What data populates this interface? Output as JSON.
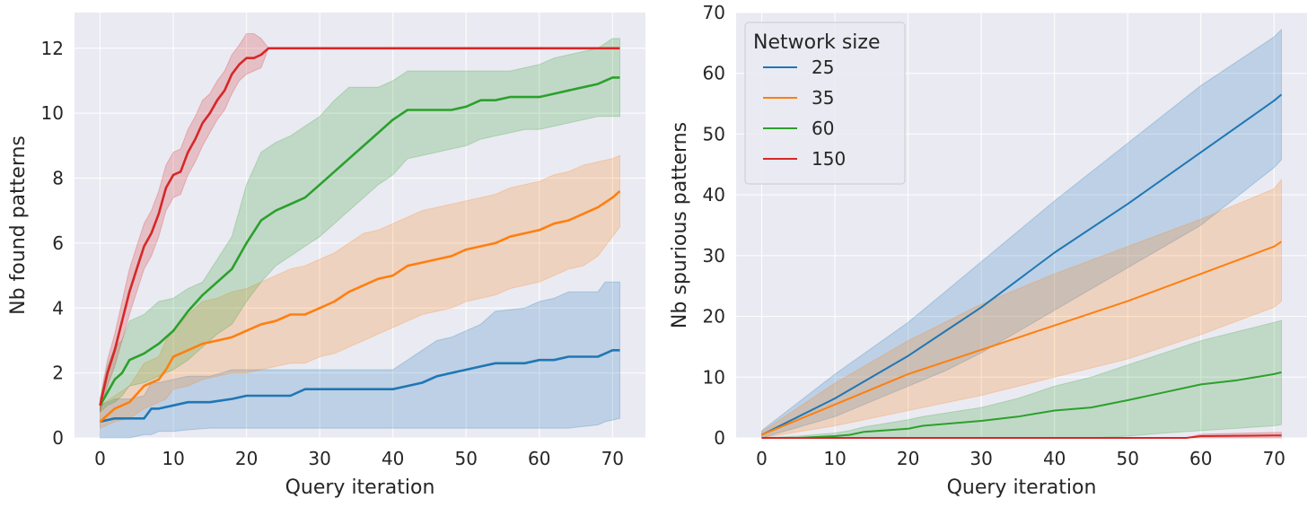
{
  "chart_data": [
    {
      "type": "line",
      "title": "",
      "xlabel": "Query iteration",
      "ylabel": "Nb found patterns",
      "xlim": [
        -3.5,
        74.5
      ],
      "ylim": [
        0,
        13.1
      ],
      "xticks": [
        0,
        10,
        20,
        30,
        40,
        50,
        60,
        70
      ],
      "yticks": [
        0,
        2,
        4,
        6,
        8,
        10,
        12
      ],
      "grid": true,
      "series": [
        {
          "name": "25",
          "color": "#1f77b4",
          "x": [
            0,
            2,
            4,
            6,
            7,
            8,
            10,
            12,
            15,
            18,
            20,
            22,
            26,
            28,
            32,
            36,
            40,
            42,
            44,
            46,
            48,
            50,
            52,
            54,
            58,
            60,
            62,
            64,
            68,
            69,
            70,
            71
          ],
          "y": [
            0.5,
            0.6,
            0.6,
            0.6,
            0.9,
            0.9,
            1.0,
            1.1,
            1.1,
            1.2,
            1.3,
            1.3,
            1.3,
            1.5,
            1.5,
            1.5,
            1.5,
            1.6,
            1.7,
            1.9,
            2.0,
            2.1,
            2.2,
            2.3,
            2.3,
            2.4,
            2.4,
            2.5,
            2.5,
            2.6,
            2.7,
            2.7
          ],
          "lower": [
            0,
            0,
            0,
            0.1,
            0.1,
            0.2,
            0.2,
            0.25,
            0.3,
            0.3,
            0.3,
            0.3,
            0.3,
            0.3,
            0.3,
            0.3,
            0.3,
            0.3,
            0.3,
            0.3,
            0.3,
            0.3,
            0.3,
            0.3,
            0.3,
            0.3,
            0.3,
            0.3,
            0.4,
            0.5,
            0.55,
            0.6
          ],
          "upper": [
            1.0,
            1.2,
            1.2,
            1.3,
            1.7,
            1.7,
            1.8,
            1.9,
            1.9,
            2.1,
            2.1,
            2.1,
            2.1,
            2.1,
            2.1,
            2.1,
            2.1,
            2.4,
            2.7,
            3.0,
            3.1,
            3.3,
            3.5,
            3.9,
            4.0,
            4.2,
            4.3,
            4.5,
            4.5,
            4.8,
            4.8,
            4.8
          ]
        },
        {
          "name": "35",
          "color": "#ff7f0e",
          "x": [
            0,
            2,
            4,
            6,
            8,
            9,
            10,
            12,
            14,
            16,
            18,
            20,
            22,
            24,
            26,
            28,
            30,
            32,
            34,
            36,
            38,
            40,
            42,
            44,
            46,
            48,
            50,
            52,
            54,
            56,
            58,
            60,
            62,
            64,
            66,
            68,
            70,
            71
          ],
          "y": [
            0.5,
            0.9,
            1.1,
            1.6,
            1.8,
            2.1,
            2.5,
            2.7,
            2.9,
            3.0,
            3.1,
            3.3,
            3.5,
            3.6,
            3.8,
            3.8,
            4.0,
            4.2,
            4.5,
            4.7,
            4.9,
            5.0,
            5.3,
            5.4,
            5.5,
            5.6,
            5.8,
            5.9,
            6.0,
            6.2,
            6.3,
            6.4,
            6.6,
            6.7,
            6.9,
            7.1,
            7.4,
            7.6
          ],
          "lower": [
            0.3,
            0.5,
            0.6,
            0.9,
            1.1,
            1.2,
            1.5,
            1.6,
            1.8,
            1.9,
            2.0,
            2.0,
            2.1,
            2.2,
            2.3,
            2.3,
            2.5,
            2.6,
            2.8,
            3.0,
            3.2,
            3.4,
            3.6,
            3.8,
            3.9,
            4.0,
            4.2,
            4.3,
            4.4,
            4.6,
            4.7,
            4.8,
            5.0,
            5.2,
            5.3,
            5.6,
            6.2,
            6.5
          ],
          "upper": [
            1.0,
            1.3,
            1.6,
            2.3,
            2.5,
            3.0,
            3.3,
            3.8,
            4.2,
            4.3,
            4.5,
            4.6,
            4.8,
            5.0,
            5.2,
            5.3,
            5.5,
            5.7,
            6.0,
            6.3,
            6.4,
            6.6,
            6.8,
            7.0,
            7.1,
            7.2,
            7.3,
            7.4,
            7.5,
            7.7,
            7.8,
            7.9,
            8.1,
            8.2,
            8.4,
            8.5,
            8.6,
            8.7
          ]
        },
        {
          "name": "60",
          "color": "#2ca02c",
          "x": [
            0,
            1,
            2,
            3,
            4,
            6,
            8,
            10,
            12,
            14,
            16,
            18,
            20,
            22,
            24,
            26,
            28,
            30,
            32,
            34,
            36,
            38,
            40,
            42,
            44,
            46,
            48,
            50,
            52,
            54,
            56,
            58,
            60,
            62,
            64,
            66,
            68,
            70,
            71
          ],
          "y": [
            1.0,
            1.4,
            1.8,
            2.0,
            2.4,
            2.6,
            2.9,
            3.3,
            3.9,
            4.4,
            4.8,
            5.2,
            6.0,
            6.7,
            7.0,
            7.2,
            7.4,
            7.8,
            8.2,
            8.6,
            9.0,
            9.4,
            9.8,
            10.1,
            10.1,
            10.1,
            10.1,
            10.2,
            10.4,
            10.4,
            10.5,
            10.5,
            10.5,
            10.6,
            10.7,
            10.8,
            10.9,
            11.1,
            11.1
          ],
          "lower": [
            0.8,
            1.0,
            1.1,
            1.3,
            1.6,
            1.7,
            1.9,
            2.1,
            2.4,
            2.8,
            3.2,
            3.5,
            4.2,
            4.8,
            5.3,
            5.6,
            5.9,
            6.2,
            6.6,
            7.0,
            7.4,
            7.8,
            8.1,
            8.6,
            8.7,
            8.8,
            8.9,
            9.0,
            9.2,
            9.3,
            9.4,
            9.5,
            9.5,
            9.6,
            9.7,
            9.8,
            9.9,
            9.9,
            9.9
          ],
          "upper": [
            1.2,
            2.2,
            2.8,
            3.0,
            3.6,
            3.8,
            4.2,
            4.3,
            4.6,
            4.8,
            5.5,
            6.2,
            7.8,
            8.8,
            9.1,
            9.3,
            9.6,
            9.9,
            10.4,
            10.8,
            10.8,
            10.8,
            11.0,
            11.3,
            11.3,
            11.3,
            11.3,
            11.3,
            11.3,
            11.3,
            11.3,
            11.4,
            11.5,
            11.7,
            11.8,
            11.9,
            12.0,
            12.3,
            12.3
          ]
        },
        {
          "name": "150",
          "color": "#d62728",
          "x": [
            0,
            1,
            2,
            3,
            4,
            5,
            6,
            7,
            8,
            9,
            10,
            11,
            12,
            13,
            14,
            15,
            16,
            17,
            18,
            19,
            20,
            21,
            22,
            23,
            25,
            30,
            40,
            50,
            60,
            70,
            71
          ],
          "y": [
            1.0,
            2.0,
            2.7,
            3.6,
            4.5,
            5.2,
            5.9,
            6.3,
            6.9,
            7.7,
            8.1,
            8.2,
            8.8,
            9.2,
            9.7,
            10.0,
            10.4,
            10.7,
            11.2,
            11.5,
            11.7,
            11.7,
            11.8,
            12.0,
            12.0,
            12.0,
            12.0,
            12.0,
            12.0,
            12.0,
            12.0
          ],
          "lower": [
            0.8,
            1.6,
            2.2,
            3.0,
            3.8,
            4.5,
            5.2,
            5.6,
            6.2,
            7.0,
            7.4,
            7.5,
            8.1,
            8.5,
            9.0,
            9.4,
            9.8,
            10.1,
            10.6,
            11.0,
            11.2,
            11.3,
            11.4,
            12.0,
            12.0,
            12.0,
            12.0,
            12.0,
            12.0,
            12.0,
            12.0
          ],
          "upper": [
            1.2,
            2.4,
            3.2,
            4.2,
            5.2,
            5.9,
            6.6,
            7.0,
            7.6,
            8.4,
            8.8,
            8.9,
            9.5,
            9.9,
            10.4,
            10.6,
            11.0,
            11.3,
            11.8,
            12.1,
            12.45,
            12.45,
            12.3,
            12.0,
            12.0,
            12.0,
            12.0,
            12.0,
            12.0,
            12.0,
            12.0
          ]
        }
      ]
    },
    {
      "type": "line",
      "title": "",
      "xlabel": "Query iteration",
      "ylabel": "Nb spurious patterns",
      "xlim": [
        -3.5,
        74.5
      ],
      "ylim": [
        0,
        70
      ],
      "xticks": [
        0,
        10,
        20,
        30,
        40,
        50,
        60,
        70
      ],
      "yticks": [
        0,
        10,
        20,
        30,
        40,
        50,
        60,
        70
      ],
      "grid": true,
      "legend": {
        "title": "Network size",
        "position": "top-left"
      },
      "series": [
        {
          "name": "25",
          "color": "#1f77b4",
          "x": [
            0,
            10,
            20,
            25,
            30,
            40,
            50,
            60,
            70,
            71
          ],
          "y": [
            0.5,
            6.5,
            13.5,
            17.5,
            21.5,
            30.5,
            38.5,
            47.0,
            55.5,
            56.5
          ],
          "lower": [
            0,
            3.5,
            8.5,
            11.0,
            14.0,
            21.0,
            28.0,
            35.0,
            44.5,
            45.8
          ],
          "upper": [
            1.2,
            10.5,
            19.0,
            24.0,
            29.0,
            39.0,
            48.5,
            58.0,
            66.0,
            67.2
          ]
        },
        {
          "name": "35",
          "color": "#ff7f0e",
          "x": [
            0,
            10,
            20,
            30,
            40,
            50,
            60,
            70,
            71
          ],
          "y": [
            0.5,
            5.5,
            10.5,
            14.5,
            18.5,
            22.5,
            27.0,
            31.5,
            32.3
          ],
          "lower": [
            0,
            2.0,
            4.5,
            7.0,
            10.0,
            13.0,
            17.0,
            21.5,
            22.5
          ],
          "upper": [
            1.0,
            9.0,
            16.0,
            22.0,
            27.0,
            31.5,
            36.0,
            41.0,
            42.5
          ]
        },
        {
          "name": "60",
          "color": "#2ca02c",
          "x": [
            0,
            5,
            10,
            12,
            14,
            20,
            22,
            30,
            35,
            40,
            45,
            50,
            55,
            60,
            65,
            70,
            71
          ],
          "y": [
            0,
            0,
            0.3,
            0.5,
            1.0,
            1.5,
            2.0,
            2.8,
            3.5,
            4.5,
            5.0,
            6.2,
            7.5,
            8.8,
            9.5,
            10.5,
            10.8
          ],
          "lower": [
            0,
            0,
            0,
            0,
            0,
            0,
            0,
            0,
            0,
            0,
            0,
            0.3,
            0.8,
            1.2,
            1.6,
            2.0,
            2.2
          ],
          "upper": [
            0,
            0.3,
            0.8,
            1.2,
            1.8,
            3.0,
            3.5,
            5.0,
            6.5,
            8.5,
            10.0,
            12.0,
            14.0,
            16.0,
            17.5,
            19.0,
            19.3
          ]
        },
        {
          "name": "150",
          "color": "#d62728",
          "x": [
            0,
            58,
            60,
            70,
            71
          ],
          "y": [
            0,
            0,
            0.3,
            0.4,
            0.4
          ],
          "lower": [
            0,
            0,
            0,
            0,
            0
          ],
          "upper": [
            0,
            0,
            0.6,
            0.9,
            0.9
          ]
        }
      ]
    }
  ]
}
